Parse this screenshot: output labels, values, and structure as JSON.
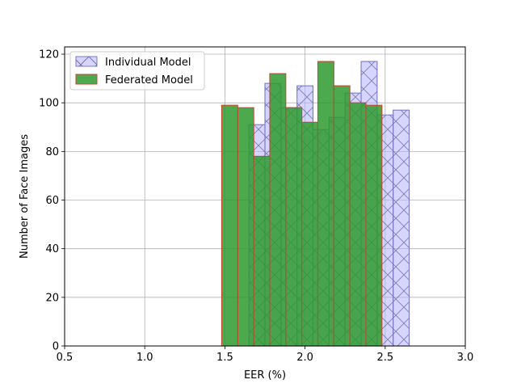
{
  "chart_data": {
    "type": "bar",
    "title": "",
    "xlabel": "EER (%)",
    "ylabel": "Number of Face Images",
    "xlim": [
      0.5,
      3.0
    ],
    "ylim": [
      0,
      123
    ],
    "xticks": [
      0.5,
      1.0,
      1.5,
      2.0,
      2.5,
      3.0
    ],
    "xtick_labels": [
      "0.5",
      "1.0",
      "1.5",
      "2.0",
      "2.5",
      "3.0"
    ],
    "yticks": [
      0,
      20,
      40,
      60,
      80,
      100,
      120
    ],
    "ytick_labels": [
      "0",
      "20",
      "40",
      "60",
      "80",
      "100",
      "120"
    ],
    "grid": true,
    "legend_position": "top-left",
    "series": [
      {
        "name": "Individual Model",
        "color": "#b3b3ff",
        "edge": "#7878c8",
        "hatch": "x",
        "alpha": 0.55,
        "bin_start": 1.65,
        "bin_width": 0.1,
        "values": [
          91,
          108,
          98,
          107,
          89,
          94,
          104,
          117,
          95,
          97
        ]
      },
      {
        "name": "Federated Model",
        "color": "#2e9a2e",
        "edge": "#c84632",
        "hatch": "",
        "alpha": 0.85,
        "bin_start": 1.48,
        "bin_width": 0.1,
        "values": [
          99,
          98,
          78,
          112,
          98,
          92,
          117,
          107,
          100,
          99
        ]
      }
    ]
  }
}
